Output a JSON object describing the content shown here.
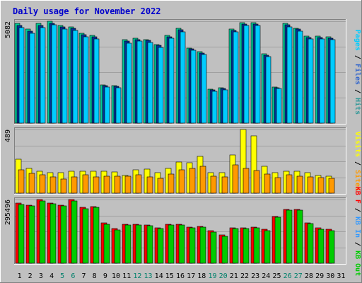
{
  "chart_data": {
    "title": "Daily usage for November 2022",
    "type": "bar",
    "days": [
      "1",
      "2",
      "3",
      "4",
      "5",
      "6",
      "7",
      "8",
      "9",
      "10",
      "11",
      "12",
      "13",
      "14",
      "15",
      "16",
      "17",
      "18",
      "19",
      "20",
      "21",
      "22",
      "23",
      "24",
      "25",
      "26",
      "27",
      "28",
      "29",
      "30",
      "31"
    ],
    "weekend_days": [
      "5",
      "6",
      "12",
      "13",
      "19",
      "20",
      "26",
      "27"
    ],
    "panels": [
      {
        "name": "hits-files-pages",
        "ymax_label": "5082",
        "ymax": 5082,
        "legend": [
          {
            "text": "Pages",
            "color": "#00ccff"
          },
          {
            "text": "Files",
            "color": "#3366cc"
          },
          {
            "text": "Hits",
            "color": "#339999"
          }
        ],
        "series": [
          {
            "name": "Hits",
            "color": "#00cc99",
            "values": [
              4960,
              4680,
              4960,
              5082,
              4870,
              4810,
              4470,
              4360,
              1920,
              1880,
              4160,
              4230,
              4160,
              3930,
              4370,
              4720,
              3740,
              3550,
              1700,
              1760,
              4700,
              5000,
              5000,
              3460,
              1800,
              4960,
              4740,
              4330,
              4330,
              4300,
              null
            ]
          },
          {
            "name": "Files",
            "color": "#003399",
            "values": [
              4860,
              4580,
              4860,
              4990,
              4800,
              4740,
              4400,
              4290,
              1870,
              1830,
              4100,
              4180,
              4120,
              3880,
              4320,
              4660,
              3700,
              3500,
              1670,
              1730,
              4640,
              4930,
              4930,
              3400,
              1770,
              4900,
              4680,
              4270,
              4270,
              4240,
              null
            ]
          },
          {
            "name": "Pages",
            "color": "#00ccff",
            "values": [
              4760,
              4480,
              4760,
              4900,
              4700,
              4640,
              4300,
              4200,
              1790,
              1750,
              4000,
              4090,
              4020,
              3790,
              4220,
              4560,
              3620,
              3420,
              1600,
              1650,
              4560,
              4860,
              4860,
              3310,
              1720,
              4810,
              4600,
              4190,
              4190,
              4160,
              null
            ]
          }
        ]
      },
      {
        "name": "visits-sites",
        "ymax_label": "489",
        "ymax": 489,
        "legend": [
          {
            "text": "Visits",
            "color": "#ffff00"
          },
          {
            "text": "Sites",
            "color": "#ff9900"
          }
        ],
        "series": [
          {
            "name": "Visits",
            "color": "#ffff00",
            "values": [
              262,
              192,
              170,
              155,
              155,
              170,
              168,
              168,
              168,
              162,
              136,
              180,
              185,
              160,
              190,
              240,
              232,
              280,
              158,
              157,
              295,
              489,
              440,
              205,
              155,
              168,
              168,
              155,
              136,
              128,
              null
            ]
          },
          {
            "name": "Sites",
            "color": "#ff9900",
            "values": [
              178,
              152,
              140,
              126,
              107,
              123,
              140,
              127,
              129,
              130,
              128,
              141,
              125,
              113,
              148,
              177,
              192,
              209,
              131,
              126,
              216,
              190,
              176,
              147,
              120,
              141,
              128,
              123,
              119,
              114,
              null
            ]
          }
        ]
      },
      {
        "name": "kb-in-out",
        "ymax_label": "295496",
        "ymax": 295496,
        "legend": [
          {
            "text": "KB F",
            "color": "#ff0000"
          },
          {
            "text": "KB In",
            "color": "#3399ff"
          },
          {
            "text": "KB Out",
            "color": "#00cc00"
          }
        ],
        "series": [
          {
            "name": "KB F",
            "color": "#ff0000",
            "values": [
              280000,
              270000,
              295000,
              280000,
              270000,
              295000,
              260000,
              263000,
              186000,
              160000,
              182000,
              182000,
              178000,
              165000,
              181000,
              182000,
              166000,
              171000,
              150000,
              130000,
              165000,
              163000,
              167000,
              157000,
              218000,
              250000,
              250000,
              187000,
              163000,
              156000,
              null
            ]
          },
          {
            "name": "KB Out",
            "color": "#00cc00",
            "values": [
              274000,
              266000,
              290000,
              276000,
              266000,
              290000,
              254000,
              258000,
              180000,
              155000,
              178000,
              178000,
              173000,
              162000,
              176000,
              178000,
              163000,
              166000,
              144000,
              126000,
              160000,
              160000,
              163000,
              152000,
              215000,
              246000,
              246000,
              183000,
              158000,
              151000,
              null
            ]
          }
        ]
      }
    ]
  }
}
